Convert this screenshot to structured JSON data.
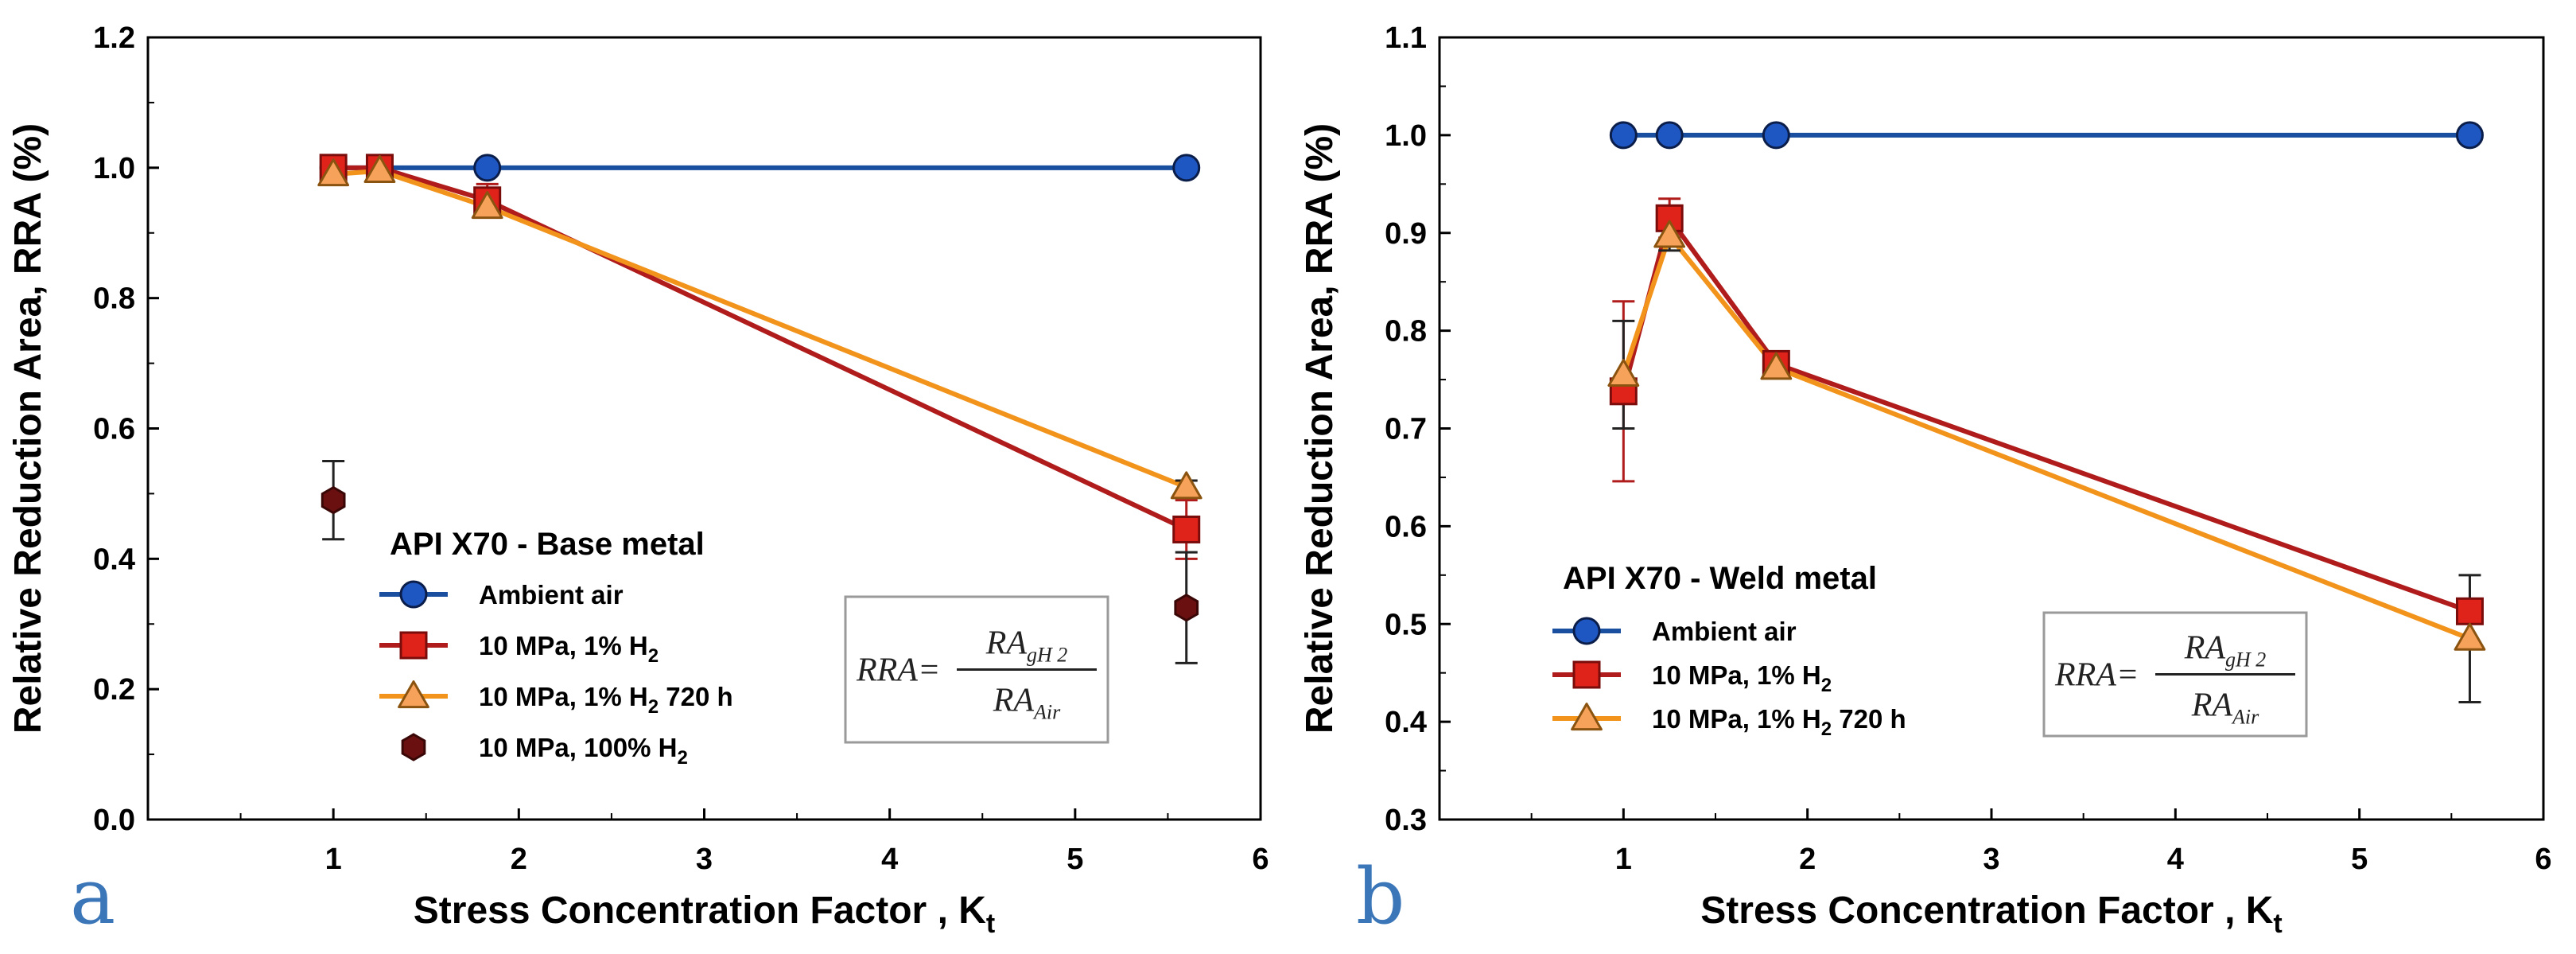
{
  "colors": {
    "ambient": "#1a4fa0",
    "ambient_fill": "#1e56c2",
    "h2_1pct": "#b01c1c",
    "h2_1pct_fill": "#e0231a",
    "h2_720h": "#f2941c",
    "h2_720h_fill": "#f7a25a",
    "h2_100pct": "#6a1010",
    "panel_letter": "#3b76b8"
  },
  "panel_a": {
    "letter": "a",
    "legend_title": "API X70 - Base metal",
    "formula": {
      "lhs": "RRA",
      "eq": "=",
      "num_main": "RA",
      "num_sub": "gH 2",
      "den_main": "RA",
      "den_sub": "Air"
    }
  },
  "panel_b": {
    "letter": "b",
    "legend_title": "API X70 - Weld metal",
    "formula": {
      "lhs": "RRA",
      "eq": "=",
      "num_main": "RA",
      "num_sub": "gH 2",
      "den_main": "RA",
      "den_sub": "Air"
    }
  },
  "chart_data": [
    {
      "type": "line",
      "panel": "a",
      "title": "API X70 - Base metal",
      "xlabel": "Stress Concentration Factor , K",
      "xlabel_sub": "t",
      "ylabel": "Relative Reduction Area, RRA (%)",
      "xlim": [
        0,
        6
      ],
      "ylim": [
        0,
        1.2
      ],
      "xticks": [
        "1",
        "2",
        "3",
        "4",
        "5",
        "6"
      ],
      "yticks": [
        "0.0",
        "0.2",
        "0.4",
        "0.6",
        "0.8",
        "1.0",
        "1.2"
      ],
      "legend_position": "bottom-left",
      "series": [
        {
          "key": "ambient",
          "name": "Ambient air",
          "name_sub": "",
          "name_suffix": "",
          "marker": "circle",
          "x": [
            1.0,
            1.25,
            1.83,
            5.6
          ],
          "y": [
            1.0,
            1.0,
            1.0,
            1.0
          ],
          "err": [
            0,
            0,
            0,
            0
          ],
          "line": true
        },
        {
          "key": "h2_1pct",
          "name": "10 MPa, 1% H",
          "name_sub": "2",
          "name_suffix": "",
          "marker": "square",
          "x": [
            1.0,
            1.25,
            1.83,
            5.6
          ],
          "y": [
            1.0,
            1.0,
            0.95,
            0.445
          ],
          "err": [
            0.015,
            0.01,
            0.025,
            0.045
          ],
          "line": true
        },
        {
          "key": "h2_720h",
          "name": "10 MPa, 1% H",
          "name_sub": "2",
          "name_suffix": " 720 h",
          "marker": "triangle",
          "x": [
            1.0,
            1.25,
            1.83,
            5.6
          ],
          "y": [
            0.99,
            0.995,
            0.94,
            0.51
          ],
          "err": [
            0.015,
            0.01,
            0.015,
            0.01
          ],
          "line": true
        },
        {
          "key": "h2_100pct",
          "name": "10 MPa, 100% H",
          "name_sub": "2",
          "name_suffix": "",
          "marker": "hexagon",
          "x": [
            1.0,
            5.6
          ],
          "y": [
            0.49,
            0.325
          ],
          "err": [
            0.06,
            0.085
          ],
          "line": false
        }
      ]
    },
    {
      "type": "line",
      "panel": "b",
      "title": "API X70 - Weld metal",
      "xlabel": "Stress Concentration Factor , K",
      "xlabel_sub": "t",
      "ylabel": "Relative Reduction Area, RRA (%)",
      "xlim": [
        0,
        6
      ],
      "ylim": [
        0.3,
        1.1
      ],
      "xticks": [
        "1",
        "2",
        "3",
        "4",
        "5",
        "6"
      ],
      "yticks": [
        "0.3",
        "0.4",
        "0.5",
        "0.6",
        "0.7",
        "0.8",
        "0.9",
        "1.0",
        "1.1"
      ],
      "legend_position": "bottom-left",
      "series": [
        {
          "key": "ambient",
          "name": "Ambient air",
          "name_sub": "",
          "name_suffix": "",
          "marker": "circle",
          "x": [
            1.0,
            1.25,
            1.83,
            5.6
          ],
          "y": [
            1.0,
            1.0,
            1.0,
            1.0
          ],
          "err": [
            0,
            0,
            0,
            0
          ],
          "line": true
        },
        {
          "key": "h2_1pct",
          "name": "10 MPa, 1% H",
          "name_sub": "2",
          "name_suffix": "",
          "marker": "square",
          "x": [
            1.0,
            1.25,
            1.83,
            5.6
          ],
          "y": [
            0.738,
            0.915,
            0.766,
            0.513
          ],
          "err": [
            0.092,
            0.02,
            0.008,
            0.012
          ],
          "line": true
        },
        {
          "key": "h2_720h",
          "name": "10 MPa, 1% H",
          "name_sub": "2",
          "name_suffix": " 720 h",
          "marker": "triangle",
          "x": [
            1.0,
            1.25,
            1.83,
            5.6
          ],
          "y": [
            0.755,
            0.897,
            0.762,
            0.485
          ],
          "err": [
            0.055,
            0.015,
            0.008,
            0.065
          ],
          "line": true
        }
      ]
    }
  ]
}
